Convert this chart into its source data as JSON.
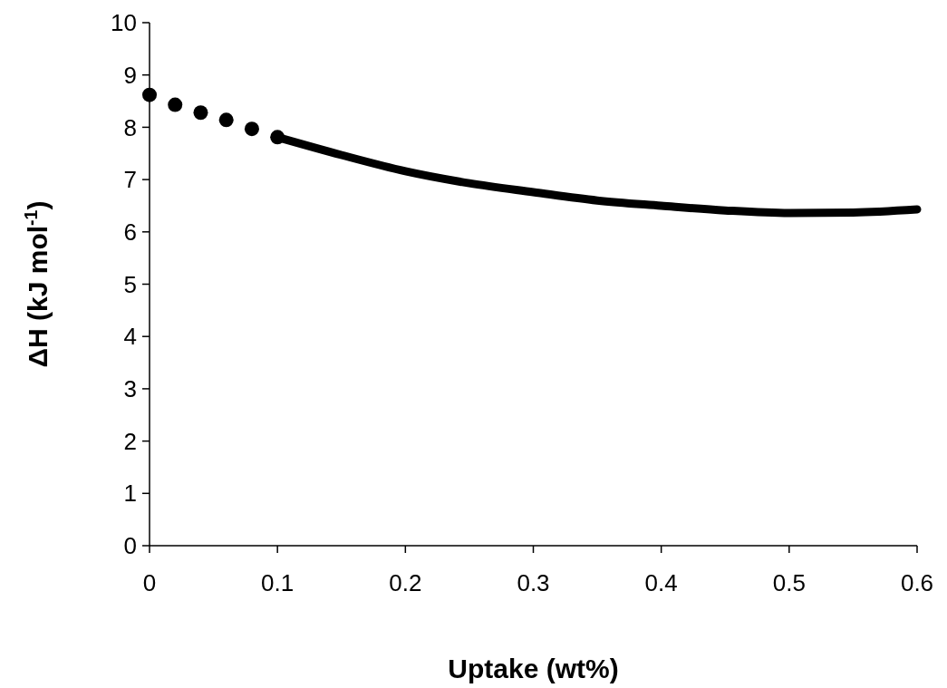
{
  "chart_data": {
    "type": "line",
    "xlabel": "Uptake (wt%)",
    "ylabel": "ΔH (kJ mol$^{-1}$)",
    "xlim": [
      0,
      0.6
    ],
    "ylim": [
      0,
      10
    ],
    "xticks": [
      0,
      0.1,
      0.2,
      0.3,
      0.4,
      0.5,
      0.6
    ],
    "yticks": [
      0,
      1,
      2,
      3,
      4,
      5,
      6,
      7,
      8,
      9,
      10
    ],
    "grid": false,
    "series": [
      {
        "type": "scatter",
        "marker": "circle",
        "color": "#000000",
        "x": [
          0,
          0.02,
          0.04,
          0.06,
          0.08,
          0.1
        ],
        "values": [
          8.62,
          8.43,
          8.28,
          8.14,
          7.97,
          7.81
        ]
      },
      {
        "type": "line",
        "marker": "none",
        "line_style": "solid",
        "color": "#000000",
        "x": [
          0.1,
          0.15,
          0.2,
          0.25,
          0.3,
          0.35,
          0.4,
          0.45,
          0.5,
          0.55,
          0.6
        ],
        "values": [
          7.81,
          7.47,
          7.16,
          6.93,
          6.76,
          6.6,
          6.5,
          6.41,
          6.36,
          6.37,
          6.43
        ]
      }
    ]
  }
}
